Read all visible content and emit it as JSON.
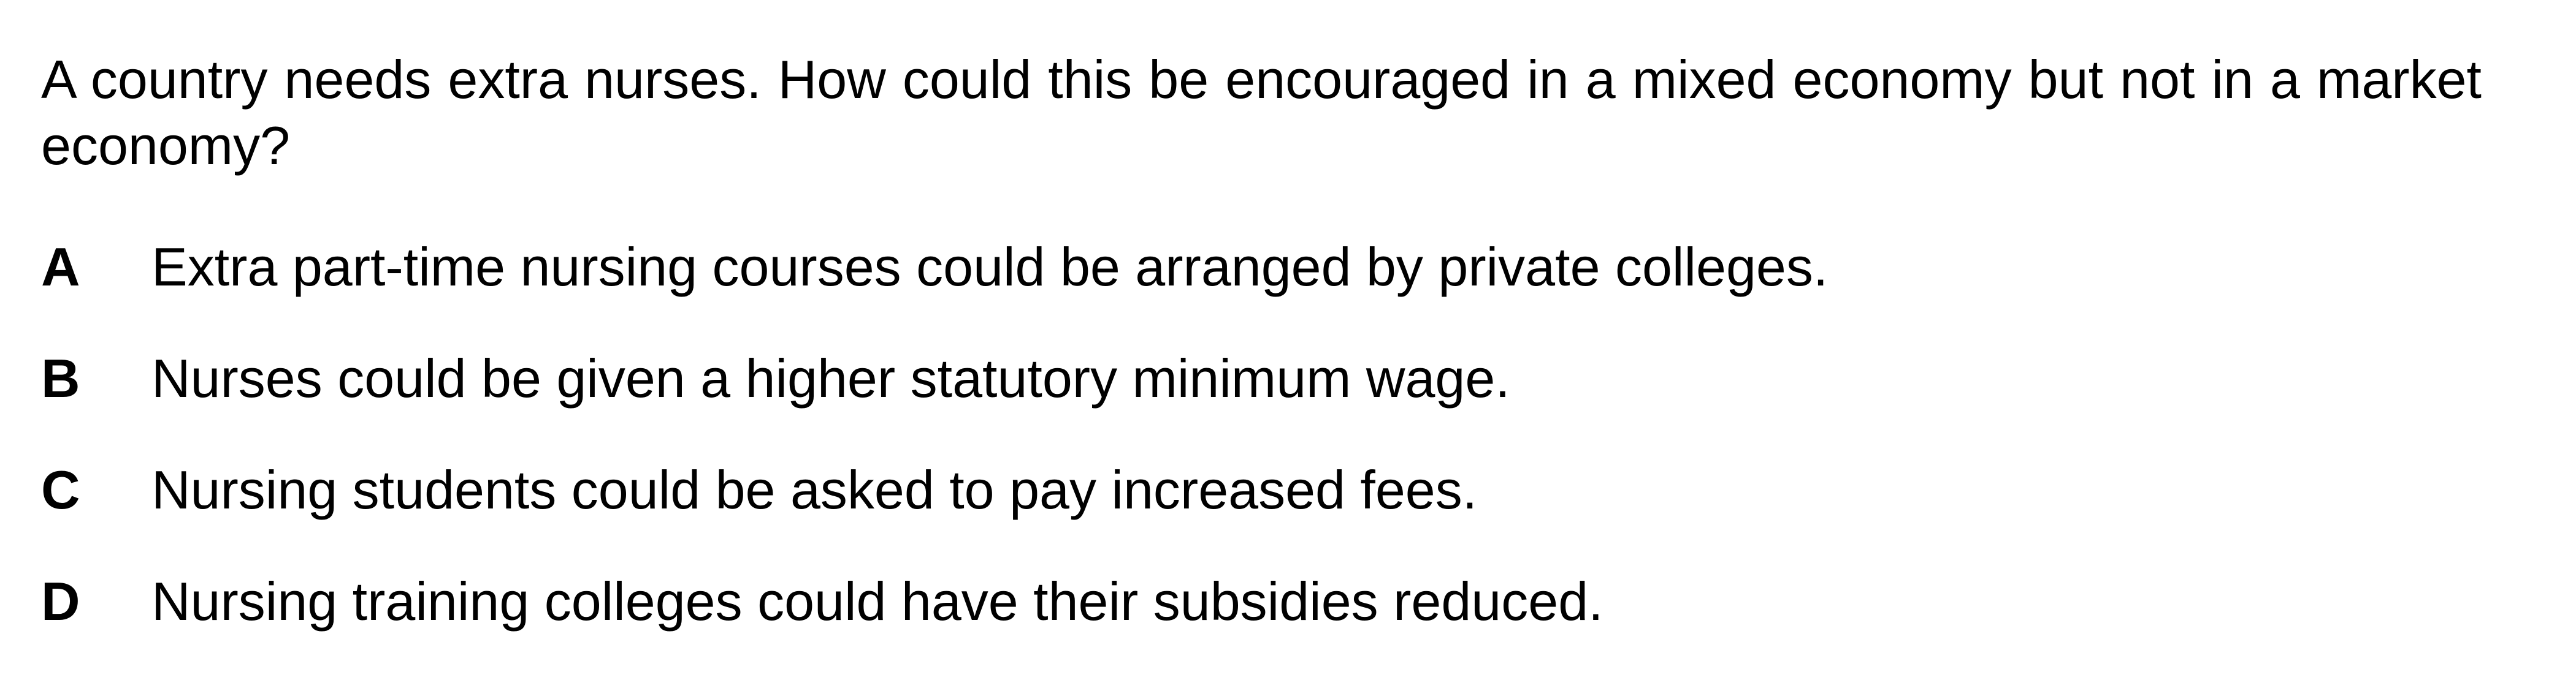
{
  "question": {
    "text": "A country needs extra nurses. How could this be encouraged in a mixed economy but not in a market economy?"
  },
  "options": [
    {
      "letter": "A",
      "text": "Extra part-time nursing courses could be arranged by private colleges."
    },
    {
      "letter": "B",
      "text": "Nurses could be given a higher statutory minimum wage."
    },
    {
      "letter": "C",
      "text": "Nursing students could be asked to pay increased fees."
    },
    {
      "letter": "D",
      "text": "Nursing training colleges could have their subsidies reduced."
    }
  ]
}
